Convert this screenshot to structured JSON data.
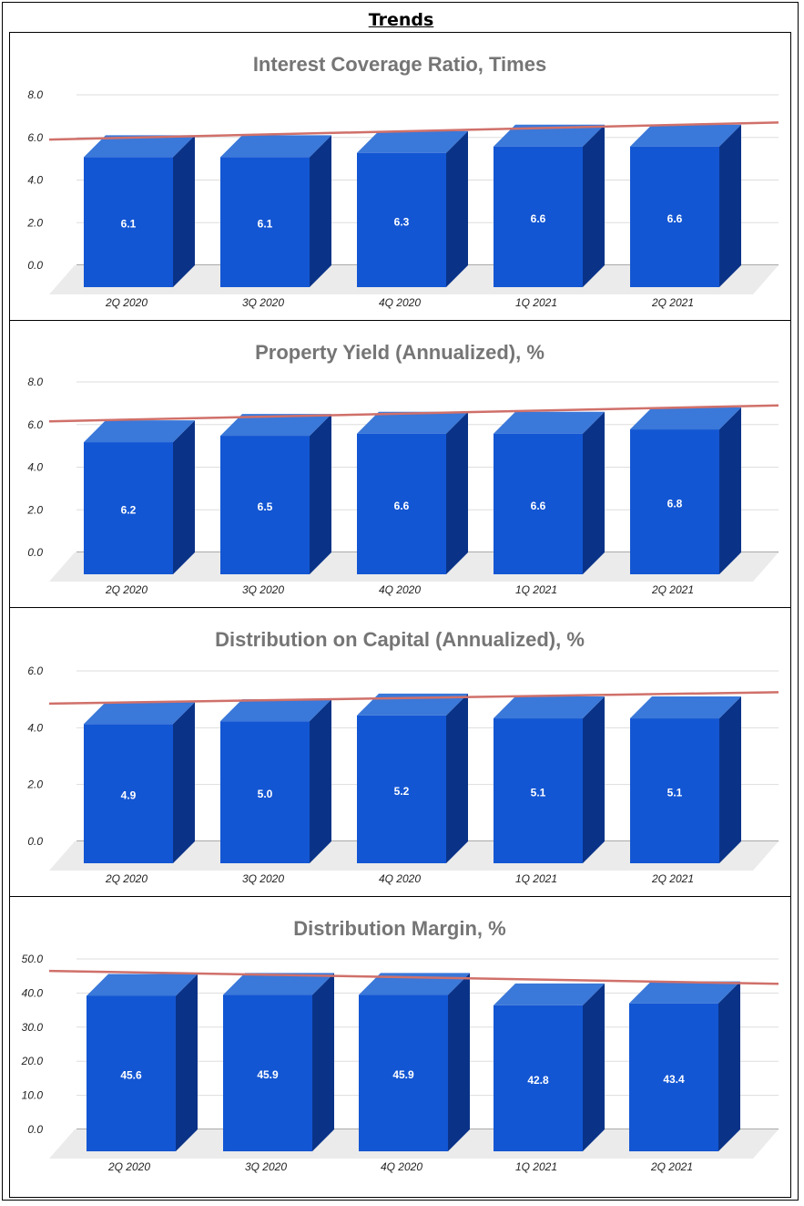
{
  "page": {
    "title": "Trends"
  },
  "colors": {
    "bar_front": "#1356d3",
    "bar_top": "#3a78d9",
    "bar_side": "#0a3388",
    "floor": "#ebebeb",
    "trend": "#d0706a",
    "grid": "#dddddd",
    "title": "#757575"
  },
  "chart_data": [
    {
      "type": "bar",
      "title": "Interest Coverage Ratio, Times",
      "categories": [
        "2Q 2020",
        "3Q 2020",
        "4Q 2020",
        "1Q 2021",
        "2Q 2021"
      ],
      "values": [
        6.1,
        6.1,
        6.3,
        6.6,
        6.6
      ],
      "data_labels": [
        "6.1",
        "6.1",
        "6.3",
        "6.6",
        "6.6"
      ],
      "yticks": [
        "0.0",
        "2.0",
        "4.0",
        "6.0",
        "8.0"
      ],
      "ylim": [
        0,
        8
      ],
      "trendline": [
        5.9,
        6.7
      ],
      "grid": true
    },
    {
      "type": "bar",
      "title": "Property Yield (Annualized), %",
      "categories": [
        "2Q 2020",
        "3Q 2020",
        "4Q 2020",
        "1Q 2021",
        "2Q 2021"
      ],
      "values": [
        6.2,
        6.5,
        6.6,
        6.6,
        6.8
      ],
      "data_labels": [
        "6.2",
        "6.5",
        "6.6",
        "6.6",
        "6.8"
      ],
      "yticks": [
        "0.0",
        "2.0",
        "4.0",
        "6.0",
        "8.0"
      ],
      "ylim": [
        0,
        8
      ],
      "trendline": [
        6.15,
        6.9
      ],
      "grid": true
    },
    {
      "type": "bar",
      "title": "Distribution on Capital (Annualized), %",
      "categories": [
        "2Q 2020",
        "3Q 2020",
        "4Q 2020",
        "1Q 2021",
        "2Q 2021"
      ],
      "values": [
        4.9,
        5.0,
        5.2,
        5.1,
        5.1
      ],
      "data_labels": [
        "4.9",
        "5.0",
        "5.2",
        "5.1",
        "5.1"
      ],
      "yticks": [
        "0.0",
        "2.0",
        "4.0",
        "6.0"
      ],
      "ylim": [
        0,
        6
      ],
      "trendline": [
        4.85,
        5.25
      ],
      "grid": true
    },
    {
      "type": "bar",
      "title": "Distribution Margin, %",
      "categories": [
        "2Q 2020",
        "3Q 2020",
        "4Q 2020",
        "1Q 2021",
        "2Q 2021"
      ],
      "values": [
        45.6,
        45.9,
        45.9,
        42.8,
        43.4
      ],
      "data_labels": [
        "45.6",
        "45.9",
        "45.9",
        "42.8",
        "43.4"
      ],
      "yticks": [
        "0.0",
        "10.0",
        "20.0",
        "30.0",
        "40.0",
        "50.0"
      ],
      "ylim": [
        0,
        50
      ],
      "trendline": [
        46.5,
        42.7
      ],
      "grid": true
    }
  ]
}
